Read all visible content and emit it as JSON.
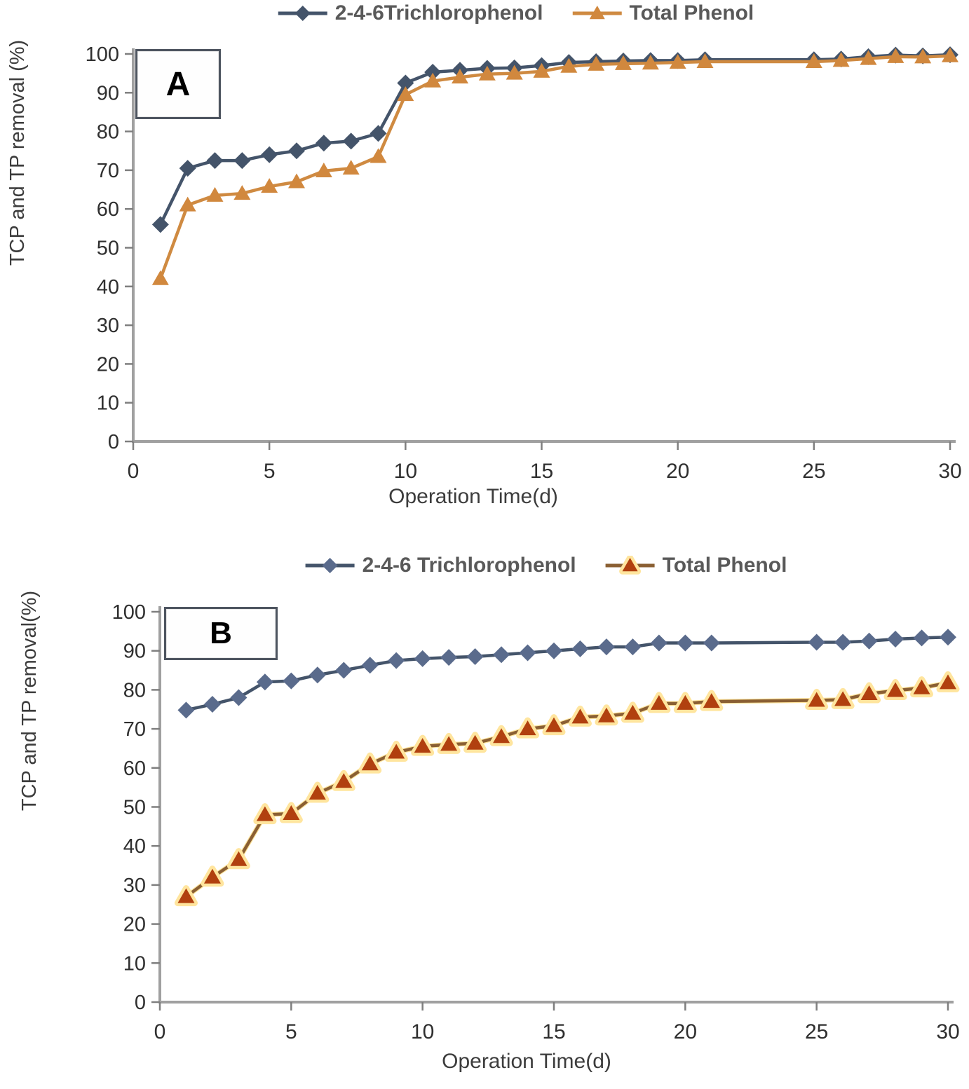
{
  "chart_data": [
    {
      "panel_label": "A",
      "type": "line",
      "xlabel": "Operation Time(d)",
      "ylabel": "TCP and TP removal (%)",
      "xlim": [
        0,
        30
      ],
      "ylim": [
        0,
        100
      ],
      "xticks": [
        0,
        5,
        10,
        15,
        20,
        25,
        30
      ],
      "yticks": [
        0,
        10,
        20,
        30,
        40,
        50,
        60,
        70,
        80,
        90,
        100
      ],
      "grid": false,
      "legend_position": "top",
      "x": [
        1,
        2,
        3,
        4,
        5,
        6,
        7,
        8,
        9,
        10,
        11,
        12,
        13,
        14,
        15,
        16,
        17,
        18,
        19,
        20,
        21,
        25,
        26,
        27,
        28,
        29,
        30
      ],
      "series": [
        {
          "name": "2-4-6Trichlorophenol",
          "marker": "diamond",
          "line_color": "#44546a",
          "marker_color": "#44546a",
          "values": [
            56,
            70.5,
            72.5,
            72.5,
            74,
            75,
            77,
            77.5,
            79.5,
            92.5,
            95.3,
            95.8,
            96.3,
            96.4,
            97,
            97.8,
            98,
            98.2,
            98.3,
            98.3,
            98.5,
            98.5,
            98.7,
            99.3,
            99.7,
            99.5,
            99.8
          ]
        },
        {
          "name": "Total Phenol",
          "marker": "triangle",
          "line_color": "#cf8a41",
          "marker_color": "#d1883e",
          "values": [
            42,
            61,
            63.5,
            64,
            65.8,
            67,
            69.8,
            70.5,
            73.5,
            89.5,
            93,
            94,
            94.8,
            95,
            95.5,
            96.8,
            97.3,
            97.5,
            97.6,
            97.8,
            98,
            98,
            98.3,
            98.8,
            99.3,
            99.2,
            99.5
          ]
        }
      ]
    },
    {
      "panel_label": "B",
      "type": "line",
      "xlabel": "Operation Time(d)",
      "ylabel": "TCP and TP removal(%)",
      "xlim": [
        0,
        30
      ],
      "ylim": [
        0,
        100
      ],
      "xticks": [
        0,
        5,
        10,
        15,
        20,
        25,
        30
      ],
      "yticks": [
        0,
        10,
        20,
        30,
        40,
        50,
        60,
        70,
        80,
        90,
        100
      ],
      "grid": false,
      "legend_position": "top",
      "x": [
        1,
        2,
        3,
        4,
        5,
        6,
        7,
        8,
        9,
        10,
        11,
        12,
        13,
        14,
        15,
        16,
        17,
        18,
        19,
        20,
        21,
        25,
        26,
        27,
        28,
        29,
        30
      ],
      "series": [
        {
          "name": "2-4-6 Trichlorophenol",
          "marker": "diamond",
          "line_color": "#44546a",
          "marker_color": "#5a6b8c",
          "values": [
            74.8,
            76.3,
            78,
            82,
            82.3,
            83.8,
            85,
            86.3,
            87.5,
            88,
            88.3,
            88.5,
            89,
            89.5,
            90,
            90.5,
            91,
            91,
            92,
            92,
            92,
            92.2,
            92.2,
            92.5,
            93,
            93.3,
            93.5
          ]
        },
        {
          "name": "Total Phenol",
          "marker": "triangle",
          "line_color": "#8a5f33",
          "marker_color": "#b1400f",
          "halo": "#ffe59e",
          "values": [
            27,
            32,
            36.5,
            48,
            48.3,
            53.5,
            56.5,
            61,
            64,
            65.5,
            66,
            66.3,
            68,
            70,
            70.8,
            73,
            73.3,
            74,
            76.5,
            76.5,
            77,
            77.3,
            77.5,
            79,
            79.8,
            80.5,
            81.8
          ]
        }
      ]
    }
  ]
}
